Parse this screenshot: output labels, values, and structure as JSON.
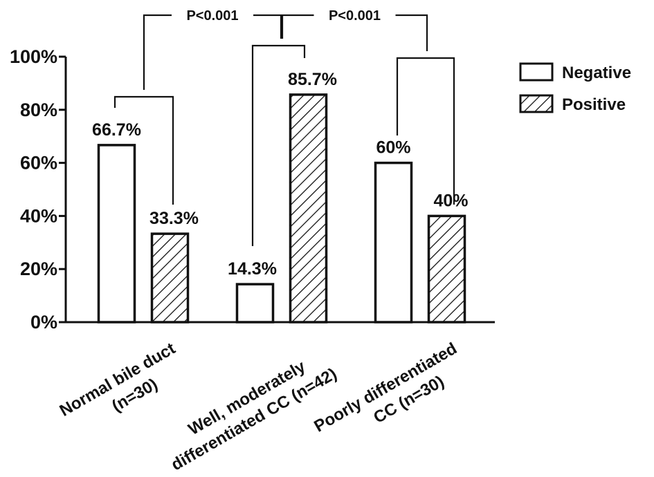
{
  "chart_data": {
    "type": "bar",
    "categories": [
      [
        "Normal bile duct",
        "(n=30)"
      ],
      [
        "Well, moderately",
        "differentiated CC (n=42)"
      ],
      [
        "Poorly differentiated",
        "CC (n=30)"
      ]
    ],
    "series": [
      {
        "name": "Negative",
        "values": [
          66.7,
          14.3,
          60
        ],
        "pattern": "none",
        "color": "#ffffff"
      },
      {
        "name": "Positive",
        "values": [
          33.3,
          85.7,
          40
        ],
        "pattern": "diagonal-hatch",
        "color": "#ffffff"
      }
    ],
    "data_labels": [
      [
        "66.7%",
        "14.3%",
        "60%"
      ],
      [
        "33.3%",
        "85.7%",
        "40%"
      ]
    ],
    "ylim": [
      0,
      100
    ],
    "yticks": [
      0,
      20,
      40,
      60,
      80,
      100
    ],
    "ytick_labels": [
      "0%",
      "20%",
      "40%",
      "60%",
      "80%",
      "100%"
    ],
    "xlabel": "",
    "ylabel": "",
    "title": "",
    "legend_position": "top-right",
    "grid": false,
    "comparisons": [
      {
        "groups": [
          0,
          1
        ],
        "label": "P<0.001"
      },
      {
        "groups": [
          1,
          2
        ],
        "label": "P<0.001"
      }
    ]
  }
}
